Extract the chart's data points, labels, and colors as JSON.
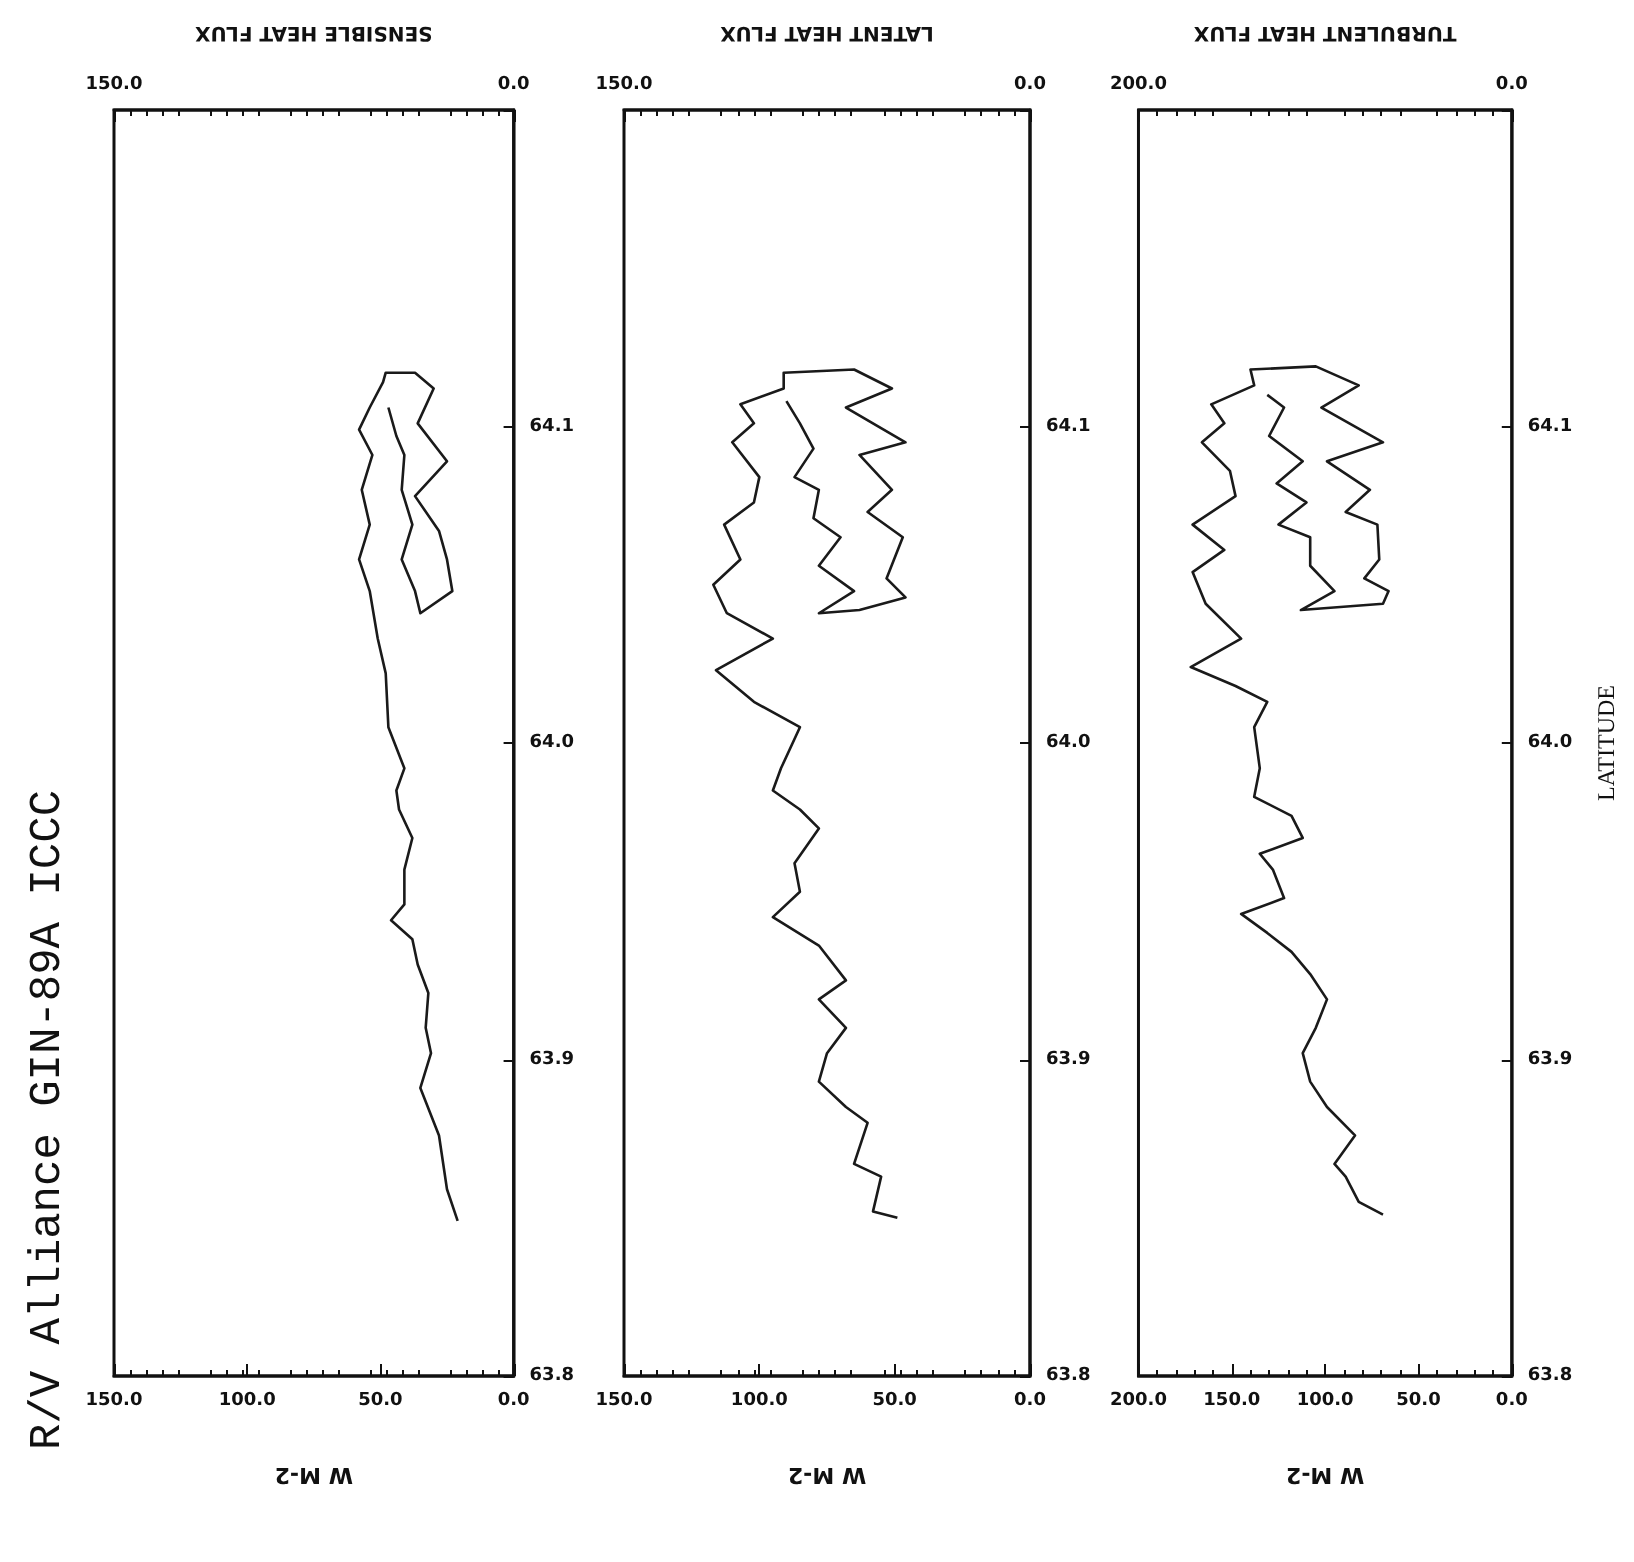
{
  "chart_data": [
    {
      "type": "line",
      "title": "R/V Alliance GIN-89A ICCC",
      "xlabel": "W M-2",
      "x2label": "SENSIBLE HEAT FLUX",
      "marker": "none",
      "line_style": "solid",
      "grid": false,
      "ylim": [
        63.8,
        64.2
      ],
      "yticks": [
        {
          "value": 63.8,
          "label": "63.8"
        },
        {
          "value": 63.9,
          "label": "63.9"
        },
        {
          "value": 64.0,
          "label": "64.0"
        },
        {
          "value": 64.1,
          "label": "64.1"
        },
        {
          "value": 64.2,
          "label": null
        }
      ],
      "xlim": [
        150,
        0
      ],
      "xticks": [
        {
          "value": 0,
          "label": "0.0"
        },
        {
          "value": 50,
          "label": "50.0"
        },
        {
          "value": 100,
          "label": "100.0"
        },
        {
          "value": 150,
          "label": "150.0"
        }
      ],
      "x2lim": [
        150,
        0
      ],
      "x2ticks": [
        {
          "value": 0,
          "label": "0.0"
        },
        {
          "value": 150,
          "label": "150.0"
        }
      ],
      "series": [
        {
          "color": "#1a1a1a",
          "values": [
            63.849,
            63.859,
            63.876,
            63.891,
            63.902,
            63.91,
            63.921,
            63.93,
            63.938,
            63.944,
            63.949,
            63.96,
            63.97,
            63.979,
            63.985,
            63.992,
            64.005,
            64.022,
            64.033,
            64.048,
            64.058,
            64.069,
            64.08,
            64.091,
            64.099,
            64.106,
            64.114,
            64.117,
            64.117,
            64.112,
            64.101,
            64.089,
            64.078,
            64.067,
            64.058,
            64.048,
            64.041,
            64.048,
            64.058,
            64.069,
            64.08,
            64.091,
            64.097,
            64.106
          ],
          "x": [
            21,
            25,
            28,
            35,
            31,
            33,
            32,
            36,
            38,
            46,
            41,
            41,
            38,
            43,
            44,
            41,
            47,
            48,
            51,
            54,
            58,
            54,
            57,
            53,
            58,
            54,
            49,
            48,
            37,
            30,
            36,
            25,
            37,
            28,
            25,
            23,
            35,
            37,
            42,
            38,
            42,
            41,
            44,
            47
          ]
        }
      ]
    },
    {
      "type": "line",
      "xlabel": "W M-2",
      "x2label": "LATENT HEAT FLUX",
      "marker": "none",
      "line_style": "solid",
      "grid": false,
      "ylim": [
        63.8,
        64.2
      ],
      "yticks": [
        {
          "value": 63.8,
          "label": "63.8"
        },
        {
          "value": 63.9,
          "label": "63.9"
        },
        {
          "value": 64.0,
          "label": "64.0"
        },
        {
          "value": 64.1,
          "label": "64.1"
        },
        {
          "value": 64.2,
          "label": null
        }
      ],
      "xlim": [
        150,
        0
      ],
      "xticks": [
        {
          "value": 0,
          "label": "0.0"
        },
        {
          "value": 50,
          "label": "50.0"
        },
        {
          "value": 100,
          "label": "100.0"
        },
        {
          "value": 150,
          "label": "150.0"
        }
      ],
      "x2lim": [
        150,
        0
      ],
      "x2ticks": [
        {
          "value": 0,
          "label": "0.0"
        },
        {
          "value": 150,
          "label": "150.0"
        }
      ],
      "series": [
        {
          "color": "#1a1a1a",
          "values": [
            63.85,
            63.852,
            63.863,
            63.867,
            63.88,
            63.885,
            63.893,
            63.902,
            63.91,
            63.919,
            63.925,
            63.936,
            63.945,
            63.953,
            63.962,
            63.973,
            63.979,
            63.985,
            63.992,
            64.005,
            64.013,
            64.023,
            64.033,
            64.041,
            64.05,
            64.058,
            64.069,
            64.076,
            64.084,
            64.095,
            64.101,
            64.107,
            64.112,
            64.117,
            64.118,
            64.112,
            64.106,
            64.095,
            64.091,
            64.08,
            64.073,
            64.065,
            64.052,
            64.046,
            64.042,
            64.041,
            64.048,
            64.056,
            64.065,
            64.071,
            64.08,
            64.084,
            64.093,
            64.101,
            64.108
          ],
          "x": [
            49,
            58,
            55,
            65,
            60,
            68,
            78,
            75,
            68,
            78,
            68,
            78,
            95,
            85,
            87,
            78,
            85,
            95,
            92,
            85,
            102,
            116,
            95,
            112,
            117,
            107,
            113,
            102,
            100,
            110,
            102,
            107,
            91,
            91,
            65,
            51,
            68,
            46,
            63,
            51,
            60,
            47,
            53,
            46,
            63,
            78,
            65,
            78,
            70,
            80,
            78,
            87,
            80,
            85,
            90
          ]
        }
      ]
    },
    {
      "type": "line",
      "xlabel": "W M-2",
      "x2label": "TURBULENT HEAT FLUX",
      "ylabel": "LATITUDE",
      "marker": "none",
      "line_style": "solid",
      "grid": false,
      "ylim": [
        63.8,
        64.2
      ],
      "yticks": [
        {
          "value": 63.8,
          "label": "63.8"
        },
        {
          "value": 63.9,
          "label": "63.9"
        },
        {
          "value": 64.0,
          "label": "64.0"
        },
        {
          "value": 64.1,
          "label": "64.1"
        },
        {
          "value": 64.2,
          "label": null
        }
      ],
      "xlim": [
        200,
        0
      ],
      "xticks": [
        {
          "value": 0,
          "label": "0.0"
        },
        {
          "value": 50,
          "label": "50.0"
        },
        {
          "value": 100,
          "label": "100.0"
        },
        {
          "value": 150,
          "label": "150.0"
        },
        {
          "value": 200,
          "label": "200.0"
        }
      ],
      "x2lim": [
        200,
        0
      ],
      "x2ticks": [
        {
          "value": 0,
          "label": "0.0"
        },
        {
          "value": 200,
          "label": "200.0"
        }
      ],
      "series": [
        {
          "color": "#1a1a1a",
          "values": [
            63.851,
            63.855,
            63.863,
            63.867,
            63.876,
            63.885,
            63.893,
            63.902,
            63.91,
            63.919,
            63.927,
            63.934,
            63.94,
            63.946,
            63.951,
            63.96,
            63.965,
            63.97,
            63.977,
            63.983,
            63.992,
            64.005,
            64.013,
            64.018,
            64.024,
            64.033,
            64.044,
            64.054,
            64.061,
            64.069,
            64.078,
            64.086,
            64.095,
            64.101,
            64.107,
            64.113,
            64.118,
            64.119,
            64.113,
            64.106,
            64.095,
            64.089,
            64.08,
            64.073,
            64.069,
            64.058,
            64.052,
            64.048,
            64.044,
            64.042,
            64.048,
            64.056,
            64.065,
            64.069,
            64.076,
            64.082,
            64.089,
            64.097,
            64.106,
            64.11
          ],
          "x": [
            69,
            82,
            89,
            95,
            84,
            99,
            108,
            112,
            105,
            99,
            108,
            118,
            131,
            145,
            122,
            128,
            135,
            112,
            118,
            138,
            135,
            138,
            131,
            148,
            172,
            145,
            164,
            171,
            154,
            171,
            148,
            151,
            166,
            154,
            161,
            138,
            140,
            105,
            82,
            102,
            69,
            99,
            76,
            89,
            72,
            71,
            79,
            66,
            69,
            113,
            95,
            108,
            108,
            125,
            110,
            126,
            112,
            130,
            122,
            131
          ]
        }
      ]
    }
  ]
}
